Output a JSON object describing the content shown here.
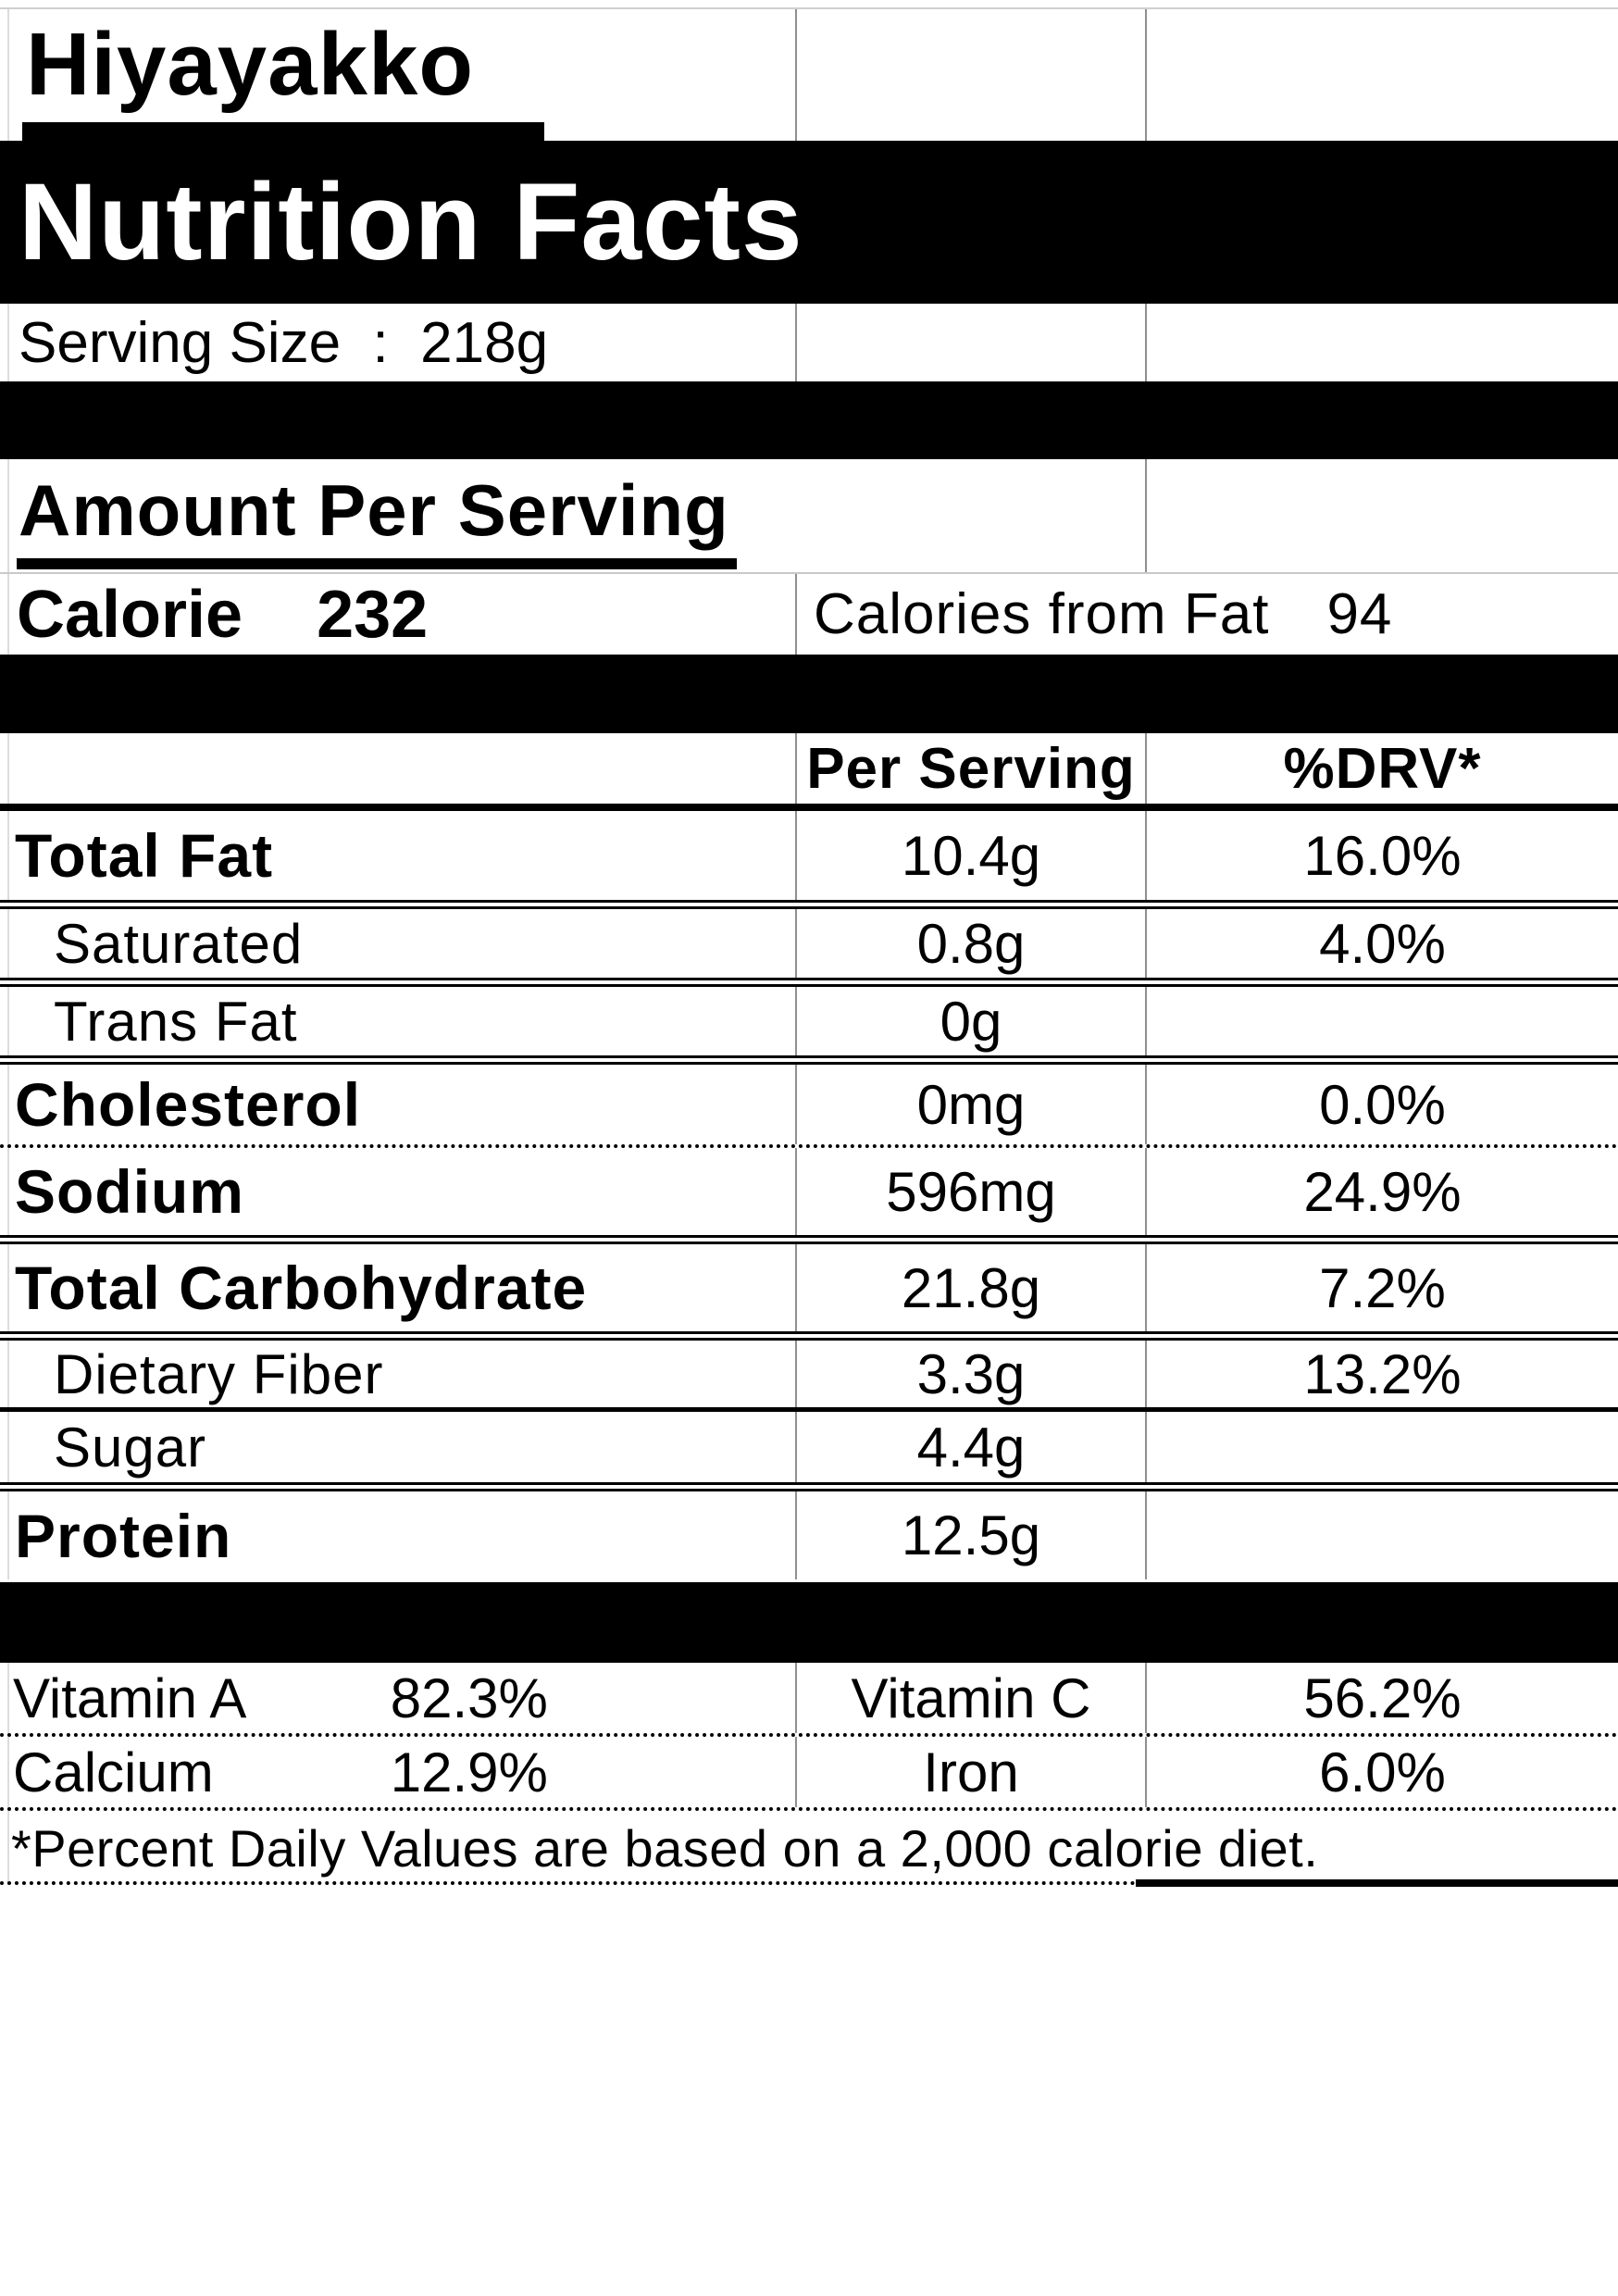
{
  "product_name": "Hiyayakko",
  "banner_title": "Nutrition Facts",
  "serving_size": "Serving Size  :  218g",
  "section_header": "Amount Per Serving",
  "calories": {
    "label": "Calorie",
    "value": "232",
    "from_fat_label": "Calories from Fat",
    "from_fat_value": "94"
  },
  "table_header": {
    "per_serving": "Per Serving",
    "drv": "%DRV*"
  },
  "nutrients": [
    {
      "name": "Total Fat",
      "amount": "10.4g",
      "drv": "16.0%"
    },
    {
      "name": "Saturated",
      "amount": "0.8g",
      "drv": "4.0%"
    },
    {
      "name": "Trans Fat",
      "amount": "0g",
      "drv": ""
    },
    {
      "name": "Cholesterol",
      "amount": "0mg",
      "drv": "0.0%"
    },
    {
      "name": "Sodium",
      "amount": "596mg",
      "drv": "24.9%"
    },
    {
      "name": "Total Carbohydrate",
      "amount": "21.8g",
      "drv": "7.2%"
    },
    {
      "name": "Dietary Fiber",
      "amount": "3.3g",
      "drv": "13.2%"
    },
    {
      "name": "Sugar",
      "amount": "4.4g",
      "drv": ""
    },
    {
      "name": "Protein",
      "amount": "12.5g",
      "drv": ""
    }
  ],
  "micronutrients": [
    {
      "name": "Vitamin A",
      "value": "82.3%",
      "name_right": "Vitamin C",
      "value_right": "56.2%"
    },
    {
      "name": "Calcium",
      "value": "12.9%",
      "name_right": "Iron",
      "value_right": "6.0%"
    }
  ],
  "footnote": "*Percent Daily Values are based on a 2,000 calorie diet.",
  "colors": {
    "banner_bg": "#000000",
    "banner_text": "#ffffff",
    "gridline": "#8f8f8f",
    "text": "#000000"
  }
}
